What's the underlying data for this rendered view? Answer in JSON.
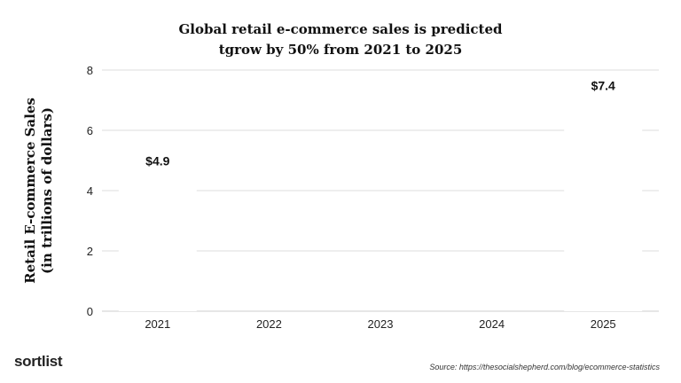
{
  "chart_data": {
    "type": "bar",
    "title": [
      "Global retail e-commerce sales is predicted",
      "tgrow by 50% from 2021 to 2025"
    ],
    "ylabel": [
      "Retail E-commerce Sales",
      "(in trillions of dollars)"
    ],
    "xlabel": "",
    "categories": [
      "2021",
      "2022",
      "2023",
      "2024",
      "2025"
    ],
    "values": [
      4.9,
      null,
      null,
      null,
      7.4
    ],
    "data_labels": [
      "$4.9",
      "",
      "",
      "",
      "$7.4"
    ],
    "ylim": [
      0,
      8
    ],
    "yticks": [
      0,
      2,
      4,
      6,
      8
    ],
    "grid": true,
    "colors": {
      "bar": "#ffffff",
      "grid": "#dddddd",
      "text": "#111111"
    }
  },
  "footer": {
    "logo": "sortlist",
    "source": "Source: https://thesocialshepherd.com/blog/ecommerce-statistics"
  }
}
